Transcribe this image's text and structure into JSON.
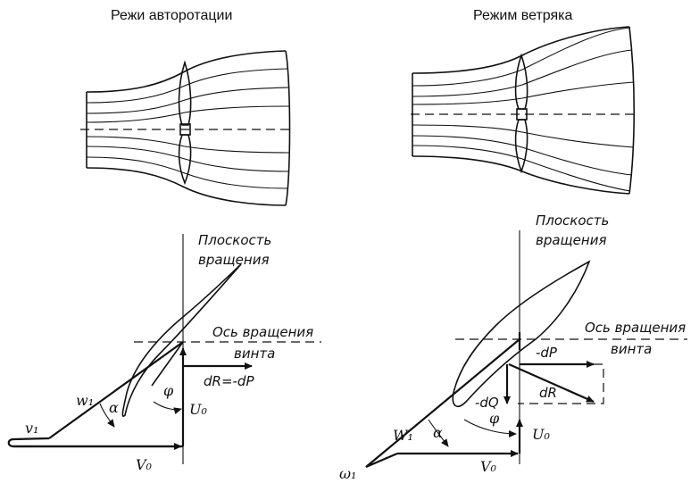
{
  "left_panel": {
    "title": "Режи авторотации",
    "rotation_plane_label_line1": "Плоскость",
    "rotation_plane_label_line2": "вращения",
    "axis_label_line1": "Ось вращения",
    "axis_label_line2": "винта",
    "force_label": "dR=-dP",
    "symbols": {
      "v1": "v₁",
      "w1": "w₁",
      "alpha": "α",
      "phi": "φ",
      "U0": "U₀",
      "V0": "V₀"
    }
  },
  "right_panel": {
    "title": "Режим ветряка",
    "rotation_plane_label_line1": "Плоскость",
    "rotation_plane_label_line2": "вращения",
    "axis_label_line1": "Ось вращения",
    "axis_label_line2": "винта",
    "minus_dP_label": "-dP",
    "dR_label": "dR",
    "dQ_label": "-dQ",
    "symbols": {
      "w1": "W₁",
      "omega1": "ω₁",
      "alpha": "α",
      "phi": "φ",
      "U0": "U₀",
      "V0": "V₀"
    }
  }
}
